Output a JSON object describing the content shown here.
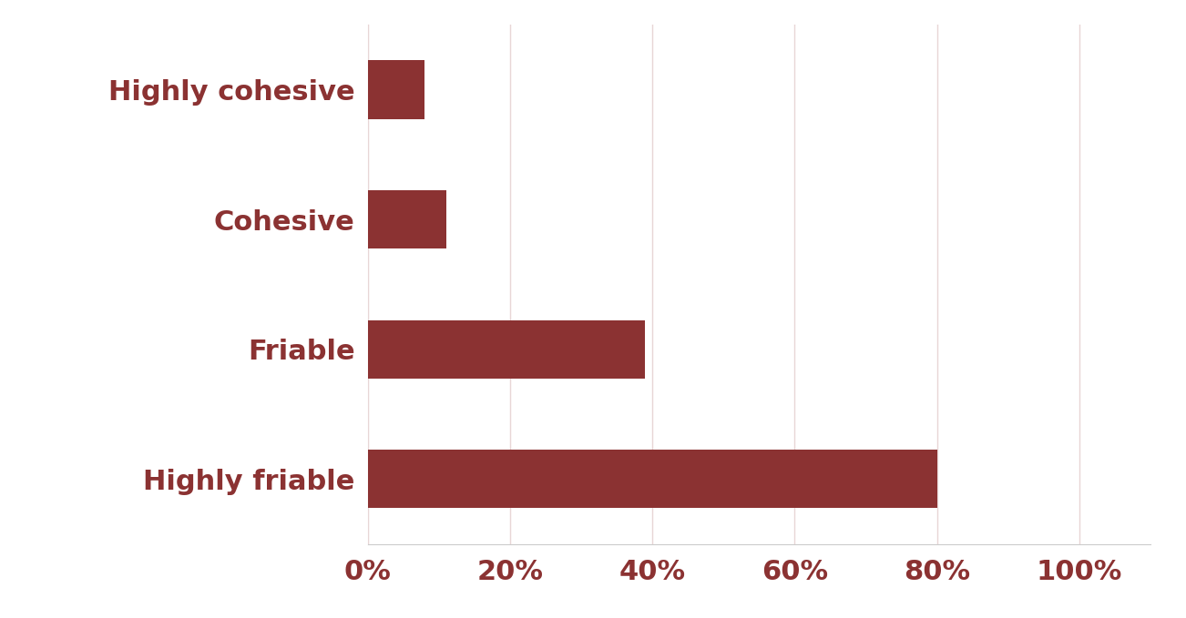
{
  "chart_data": {
    "type": "bar",
    "orientation": "horizontal",
    "categories": [
      "Highly cohesive",
      "Cohesive",
      "Friable",
      "Highly friable"
    ],
    "values": [
      8,
      11,
      39,
      80
    ],
    "color": "#8b3232",
    "xlim": [
      0,
      110
    ],
    "xticks": [
      {
        "value": 0,
        "label": "0%"
      },
      {
        "value": 20,
        "label": "20%"
      },
      {
        "value": 40,
        "label": "40%"
      },
      {
        "value": 60,
        "label": "60%"
      },
      {
        "value": 80,
        "label": "80%"
      },
      {
        "value": 100,
        "label": "100%"
      }
    ],
    "grid": true
  }
}
